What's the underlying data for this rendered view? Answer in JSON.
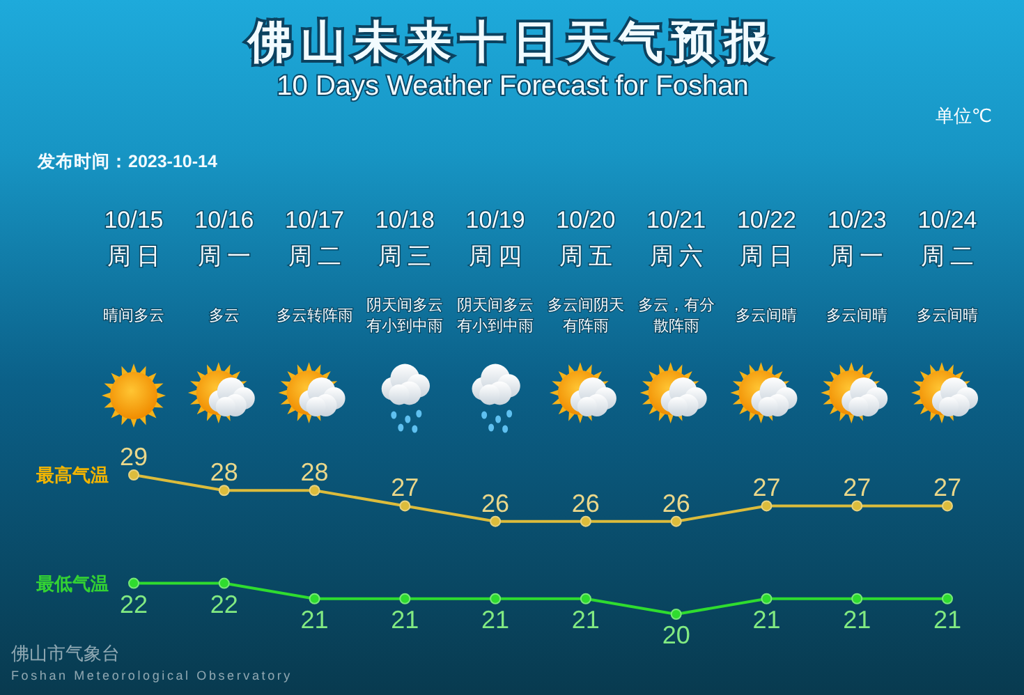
{
  "chart_data": {
    "type": "line",
    "title": "佛山未来十日天气预报",
    "subtitle": "10 Days Weather Forecast for Foshan",
    "categories": [
      "10/15",
      "10/16",
      "10/17",
      "10/18",
      "10/19",
      "10/20",
      "10/21",
      "10/22",
      "10/23",
      "10/24"
    ],
    "series": [
      {
        "name": "最高气温",
        "color": "#dcbc3c",
        "values": [
          29,
          28,
          28,
          27,
          26,
          26,
          26,
          27,
          27,
          27
        ]
      },
      {
        "name": "最低气温",
        "color": "#2fdc2f",
        "values": [
          22,
          22,
          21,
          21,
          21,
          21,
          20,
          21,
          21,
          21
        ]
      }
    ],
    "data_labels": true,
    "marker": "circle",
    "line_style": "solid",
    "legend": false,
    "grid": false,
    "tick_labels": "x",
    "annotations": [
      "周日",
      "周一",
      "周二",
      "周三",
      "周四",
      "周五",
      "周六",
      "周日",
      "周一",
      "周二",
      "晴间多云",
      "多云",
      "多云转阵雨",
      "阴天间多云有小到中雨",
      "阴天间多云有小到中雨",
      "多云间阴天有阵雨",
      "多云，有分散阵雨",
      "多云间晴",
      "多云间晴",
      "多云间晴",
      "单位℃",
      "发布时间：2023-10-14",
      "佛山市气象台",
      "Foshan Meteorological Observatory"
    ]
  }
}
